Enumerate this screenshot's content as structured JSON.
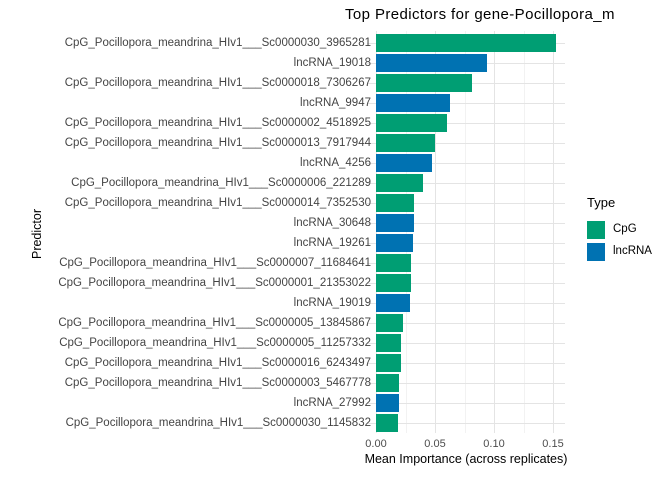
{
  "chart_data": {
    "type": "bar",
    "orientation": "horizontal",
    "title": "Top Predictors for gene-Pocillopora_m",
    "xlabel": "Mean Importance (across replicates)",
    "ylabel": "Predictor",
    "xlim": [
      0,
      0.16
    ],
    "x_ticks": [
      0,
      0.05,
      0.1,
      0.15
    ],
    "x_tick_labels": [
      "0.00",
      "0.05",
      "0.10",
      "0.15"
    ],
    "grid": true,
    "colors": {
      "CpG": "#009E73",
      "lncRNA": "#0072B2"
    },
    "legend": {
      "title": "Type",
      "position": "right",
      "entries": [
        {
          "label": "CpG",
          "color": "#009E73"
        },
        {
          "label": "lncRNA",
          "color": "#0072B2"
        }
      ]
    },
    "bars": [
      {
        "label": "CpG_Pocillopora_meandrina_HIv1___Sc0000030_3965281",
        "type": "CpG",
        "value": 0.1525
      },
      {
        "label": "lncRNA_19018",
        "type": "lncRNA",
        "value": 0.094
      },
      {
        "label": "CpG_Pocillopora_meandrina_HIv1___Sc0000018_7306267",
        "type": "CpG",
        "value": 0.081
      },
      {
        "label": "lncRNA_9947",
        "type": "lncRNA",
        "value": 0.063
      },
      {
        "label": "CpG_Pocillopora_meandrina_HIv1___Sc0000002_4518925",
        "type": "CpG",
        "value": 0.06
      },
      {
        "label": "CpG_Pocillopora_meandrina_HIv1___Sc0000013_7917944",
        "type": "CpG",
        "value": 0.05
      },
      {
        "label": "lncRNA_4256",
        "type": "lncRNA",
        "value": 0.0473
      },
      {
        "label": "CpG_Pocillopora_meandrina_HIv1___Sc0000006_221289",
        "type": "CpG",
        "value": 0.0398
      },
      {
        "label": "CpG_Pocillopora_meandrina_HIv1___Sc0000014_7352530",
        "type": "CpG",
        "value": 0.0322
      },
      {
        "label": "lncRNA_30648",
        "type": "lncRNA",
        "value": 0.032
      },
      {
        "label": "lncRNA_19261",
        "type": "lncRNA",
        "value": 0.031
      },
      {
        "label": "CpG_Pocillopora_meandrina_HIv1___Sc0000007_11684641",
        "type": "CpG",
        "value": 0.03
      },
      {
        "label": "CpG_Pocillopora_meandrina_HIv1___Sc0000001_21353022",
        "type": "CpG",
        "value": 0.0294
      },
      {
        "label": "lncRNA_19019",
        "type": "lncRNA",
        "value": 0.0286
      },
      {
        "label": "CpG_Pocillopora_meandrina_HIv1___Sc0000005_13845867",
        "type": "CpG",
        "value": 0.0233
      },
      {
        "label": "CpG_Pocillopora_meandrina_HIv1___Sc0000005_11257332",
        "type": "CpG",
        "value": 0.0214
      },
      {
        "label": "CpG_Pocillopora_meandrina_HIv1___Sc0000016_6243497",
        "type": "CpG",
        "value": 0.0212
      },
      {
        "label": "CpG_Pocillopora_meandrina_HIv1___Sc0000003_5467778",
        "type": "CpG",
        "value": 0.0198
      },
      {
        "label": "lncRNA_27992",
        "type": "lncRNA",
        "value": 0.0195
      },
      {
        "label": "CpG_Pocillopora_meandrina_HIv1___Sc0000030_1145832",
        "type": "CpG",
        "value": 0.0183
      }
    ]
  }
}
